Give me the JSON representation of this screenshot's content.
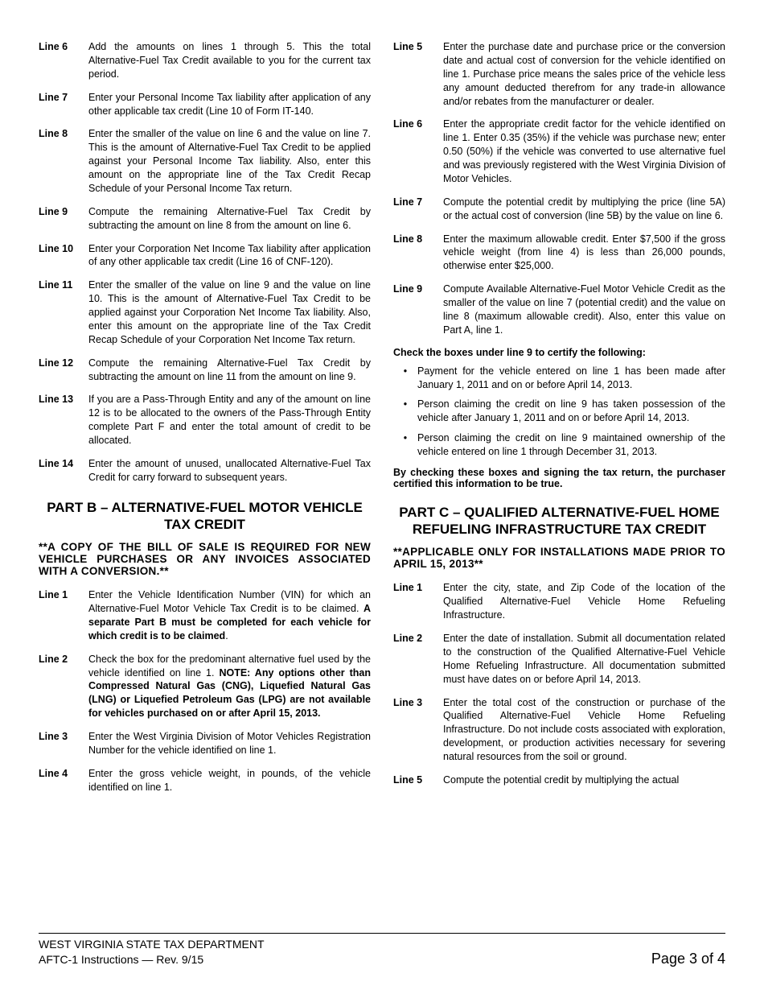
{
  "leftCol": {
    "items": [
      {
        "label": "Line 6",
        "text": "Add the amounts on lines 1 through 5. This the total Alternative-Fuel Tax Credit available to you for the current tax period."
      },
      {
        "label": "Line 7",
        "text": "Enter your Personal Income Tax liability after application of any other applicable tax credit (Line 10 of Form IT-140."
      },
      {
        "label": "Line 8",
        "text": "Enter the smaller of the value on line 6 and the value on line 7. This is the amount of Alternative-Fuel Tax Credit to be applied against your Personal Income Tax liability. Also, enter this amount on the appropriate line of the Tax Credit Recap Schedule of your Personal Income Tax return."
      },
      {
        "label": "Line 9",
        "text": "Compute the remaining Alternative-Fuel Tax Credit by subtracting the amount on line 8 from the amount on line 6."
      },
      {
        "label": "Line 10",
        "text": "Enter your Corporation Net Income Tax liability after application of any other applicable tax credit (Line 16 of CNF-120)."
      },
      {
        "label": "Line 11",
        "text": "Enter the smaller of the value on line 9 and the value on line 10. This is the amount of Alternative-Fuel Tax Credit to be applied against your Corporation Net Income Tax liability. Also, enter this amount on the appropriate line of the Tax Credit Recap Schedule of your Corporation Net Income Tax return."
      },
      {
        "label": "Line 12",
        "text": "Compute the remaining Alternative-Fuel Tax Credit by subtracting the amount on line 11 from the amount on line 9."
      },
      {
        "label": "Line 13",
        "text": "If you are a Pass-Through Entity and any of the amount on line 12 is to be allocated to the owners of the Pass-Through Entity complete Part F and enter the total amount of credit to be allocated."
      },
      {
        "label": "Line 14",
        "text": "Enter the amount of unused, unallocated Alternative-Fuel Tax Credit for carry forward to subsequent years."
      }
    ],
    "partB": {
      "heading": "PART B – ALTERNATIVE-FUEL MOTOR VEHICLE TAX CREDIT",
      "notice": "**A COPY OF THE BILL OF SALE IS REQUIRED FOR NEW VEHICLE PURCHASES OR ANY INVOICES ASSOCIATED WITH A CONVERSION.**",
      "items": [
        {
          "label": "Line 1",
          "html": "Enter the Vehicle Identification Number (VIN) for which an Alternative-Fuel Motor Vehicle Tax Credit is to be claimed. <b>A separate Part B must be completed for each vehicle for which credit is to be claimed</b>."
        },
        {
          "label": "Line 2",
          "html": "Check the box for the predominant alternative fuel used by the vehicle identified on line 1. <b>NOTE: Any options other than Compressed Natural Gas (CNG), Liquefied Natural Gas (LNG) or Liquefied Petroleum Gas (LPG) are not available for vehicles purchased on or after April 15, 2013.</b>"
        },
        {
          "label": "Line 3",
          "html": "Enter the West Virginia Division of Motor Vehicles Registration Number for the vehicle identified on line 1."
        },
        {
          "label": "Line 4",
          "html": "Enter the gross vehicle weight, in pounds, of the vehicle identified on line 1."
        }
      ]
    }
  },
  "rightCol": {
    "topItems": [
      {
        "label": "Line 5",
        "text": "Enter the purchase date and purchase price or the conversion date and actual cost of conversion for the vehicle identified on line 1. Purchase price means the sales price of the vehicle less any amount deducted therefrom for any trade-in allowance and/or rebates from the manufacturer or dealer."
      },
      {
        "label": "Line 6",
        "text": "Enter the appropriate credit factor for the vehicle identified on line 1. Enter 0.35 (35%) if the vehicle was purchase new; enter 0.50 (50%) if the vehicle was converted to use alternative fuel and was previously registered with the West Virginia Division of Motor Vehicles."
      },
      {
        "label": "Line 7",
        "text": "Compute the potential credit by multiplying the price (line 5A) or the actual cost of conversion (line 5B) by the value on line 6."
      },
      {
        "label": "Line 8",
        "text": "Enter the maximum allowable credit. Enter $7,500 if the gross vehicle weight (from line 4) is less than 26,000 pounds, otherwise enter $25,000."
      },
      {
        "label": "Line 9",
        "text": "Compute Available Alternative-Fuel Motor Vehicle Credit as the smaller of the value on line 7 (potential credit) and the value on line 8 (maximum allowable credit). Also, enter this value on Part A, line 1."
      }
    ],
    "checkHeading": "Check the boxes under line 9 to certify the following:",
    "bullets": [
      "Payment for the vehicle entered on line 1 has been made after January 1, 2011 and on or before April 14, 2013.",
      "Person claiming the credit on line 9 has taken possession of the vehicle after January 1, 2011 and on or before April 14, 2013.",
      "Person claiming the credit on line 9 maintained ownership of the vehicle entered on line 1 through December 31, 2013."
    ],
    "certify": "By checking these boxes and signing the tax return, the purchaser certified this information to be true.",
    "partC": {
      "heading": "PART C – QUALIFIED ALTERNATIVE-FUEL HOME REFUELING INFRASTRUCTURE TAX CREDIT",
      "notice": "**APPLICABLE ONLY FOR INSTALLATIONS MADE PRIOR TO APRIL 15, 2013**",
      "items": [
        {
          "label": "Line 1",
          "text": "Enter the city, state, and Zip Code of the location of the Qualified Alternative-Fuel Vehicle Home Refueling Infrastructure."
        },
        {
          "label": "Line 2",
          "text": "Enter the date of installation. Submit all documentation related to the construction of the Qualified Alternative-Fuel Vehicle Home Refueling Infrastructure. All documentation submitted must have dates on or before April 14, 2013."
        },
        {
          "label": "Line 3",
          "text": "Enter the total cost of the construction or purchase of the Qualified Alternative-Fuel Vehicle Home Refueling Infrastructure. Do not include costs associated with exploration, development, or production activities necessary for severing natural resources from the soil or ground."
        },
        {
          "label": "Line 5",
          "text": "Compute the potential credit by multiplying the actual"
        }
      ]
    }
  },
  "footer": {
    "dept": "WEST VIRGINIA STATE TAX DEPARTMENT",
    "rev": "AFTC-1 Instructions — Rev. 9/15",
    "page": "Page 3 of 4"
  }
}
